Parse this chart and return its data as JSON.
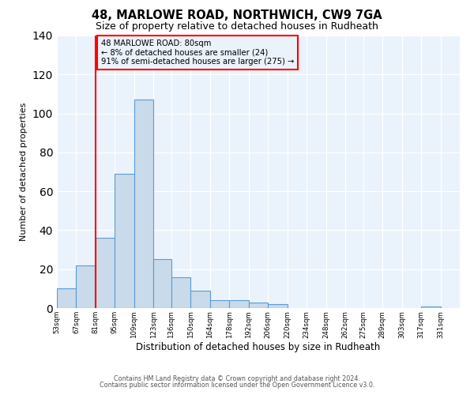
{
  "title": "48, MARLOWE ROAD, NORTHWICH, CW9 7GA",
  "subtitle": "Size of property relative to detached houses in Rudheath",
  "xlabel": "Distribution of detached houses by size in Rudheath",
  "ylabel": "Number of detached properties",
  "bar_left_edges": [
    53,
    67,
    81,
    95,
    109,
    123,
    136,
    150,
    164,
    178,
    192,
    206,
    220,
    234,
    248,
    262,
    275,
    289,
    303,
    317
  ],
  "bar_widths": [
    14,
    14,
    14,
    14,
    14,
    13,
    14,
    14,
    14,
    14,
    14,
    14,
    14,
    14,
    14,
    13,
    14,
    14,
    14,
    14
  ],
  "bar_heights": [
    10,
    22,
    36,
    69,
    107,
    25,
    16,
    9,
    4,
    4,
    3,
    2,
    0,
    0,
    0,
    0,
    0,
    0,
    0,
    1
  ],
  "bar_color": "#c9daea",
  "bar_edge_color": "#5b9bd5",
  "tick_labels": [
    "53sqm",
    "67sqm",
    "81sqm",
    "95sqm",
    "109sqm",
    "123sqm",
    "136sqm",
    "150sqm",
    "164sqm",
    "178sqm",
    "192sqm",
    "206sqm",
    "220sqm",
    "234sqm",
    "248sqm",
    "262sqm",
    "275sqm",
    "289sqm",
    "303sqm",
    "317sqm",
    "331sqm"
  ],
  "ylim": [
    0,
    140
  ],
  "yticks": [
    0,
    20,
    40,
    60,
    80,
    100,
    120,
    140
  ],
  "xlim_left": 53,
  "xlim_right": 345,
  "property_line_x": 81,
  "annotation_title": "48 MARLOWE ROAD: 80sqm",
  "annotation_line1": "← 8% of detached houses are smaller (24)",
  "annotation_line2": "91% of semi-detached houses are larger (275) →",
  "bg_color": "#eaf2fb",
  "grid_color": "#d0dce8",
  "footer1": "Contains HM Land Registry data © Crown copyright and database right 2024.",
  "footer2": "Contains public sector information licensed under the Open Government Licence v3.0."
}
